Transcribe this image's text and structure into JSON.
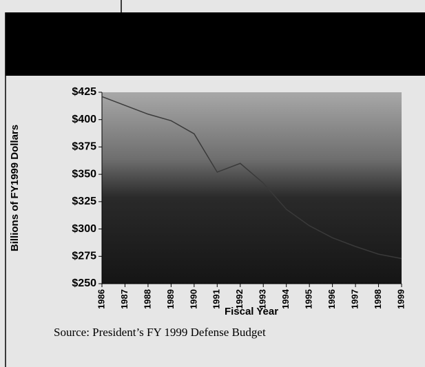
{
  "chart_data": {
    "type": "line",
    "y_label": "Billions of FY1999 Dollars",
    "x_label": "Fiscal Year",
    "source": "Source: President’s FY 1999 Defense Budget",
    "categories": [
      "1986",
      "1987",
      "1988",
      "1989",
      "1990",
      "1991",
      "1992",
      "1993",
      "1994",
      "1995",
      "1996",
      "1997",
      "1998",
      "1999"
    ],
    "series": [
      {
        "color": "#3a3a3a",
        "values": [
          421,
          413,
          405,
          399,
          387,
          352,
          360,
          342,
          318,
          303,
          292,
          284,
          277,
          273
        ]
      }
    ],
    "ylim": [
      250,
      425
    ],
    "yticks": [
      {
        "value": 250,
        "label": "$250"
      },
      {
        "value": 275,
        "label": "$275"
      },
      {
        "value": 300,
        "label": "$300"
      },
      {
        "value": 325,
        "label": "$325"
      },
      {
        "value": 350,
        "label": "$350"
      },
      {
        "value": 375,
        "label": "$375"
      },
      {
        "value": 400,
        "label": "$400"
      },
      {
        "value": 425,
        "label": "$425"
      }
    ]
  }
}
